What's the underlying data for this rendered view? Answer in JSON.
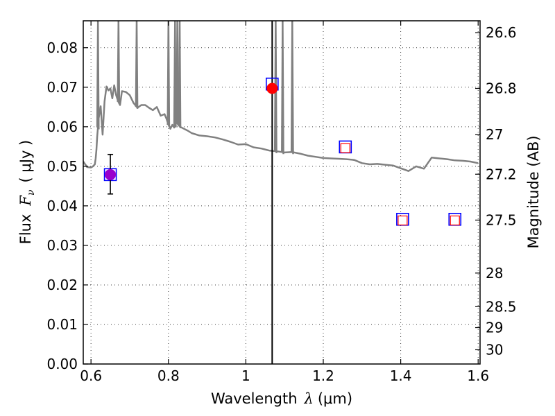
{
  "chart_data": {
    "type": "scatter",
    "xlabel_prefix": "Wavelength",
    "xlabel_symbol": "λ",
    "xlabel_unit": "(μm)",
    "ylabel_prefix": "Flux",
    "ylabel_symbol": "F",
    "ylabel_sub": "ν",
    "ylabel_unit": "( μJy )",
    "y2label": "Magnitude (AB)",
    "xlim": [
      0.58,
      1.605
    ],
    "ylim": [
      0.0,
      0.0868
    ],
    "xticks": [
      0.6,
      0.8,
      1.0,
      1.2,
      1.4,
      1.6
    ],
    "xtick_labels": [
      "0.6",
      "0.8",
      "1",
      "1.2",
      "1.4",
      "1.6"
    ],
    "yticks": [
      0.0,
      0.01,
      0.02,
      0.03,
      0.04,
      0.05,
      0.06,
      0.07,
      0.08
    ],
    "ytick_labels": [
      "0.00",
      "0.01",
      "0.02",
      "0.03",
      "0.04",
      "0.05",
      "0.06",
      "0.07",
      "0.08"
    ],
    "y2ticks": [
      {
        "label": "26.6",
        "flux": 0.0838
      },
      {
        "label": "26.8",
        "flux": 0.0697
      },
      {
        "label": "27",
        "flux": 0.058
      },
      {
        "label": "27.2",
        "flux": 0.048
      },
      {
        "label": "27.5",
        "flux": 0.0364
      },
      {
        "label": "28",
        "flux": 0.023
      },
      {
        "label": "28.5",
        "flux": 0.0145
      },
      {
        "label": "29",
        "flux": 0.0092
      },
      {
        "label": "30",
        "flux": 0.0036
      }
    ],
    "grid": true,
    "vertical_line_x": 1.068,
    "model_spectrum": {
      "color": "#808080",
      "x": [
        0.58,
        0.59,
        0.6,
        0.605,
        0.61,
        0.612,
        0.614,
        0.616,
        0.62,
        0.625,
        0.63,
        0.635,
        0.64,
        0.645,
        0.65,
        0.655,
        0.66,
        0.665,
        0.67,
        0.675,
        0.68,
        0.69,
        0.7,
        0.71,
        0.72,
        0.73,
        0.74,
        0.75,
        0.76,
        0.77,
        0.78,
        0.79,
        0.795,
        0.8,
        0.805,
        0.81,
        0.815,
        0.82,
        0.83,
        0.84,
        0.85,
        0.86,
        0.88,
        0.9,
        0.92,
        0.94,
        0.96,
        0.98,
        1.0,
        1.02,
        1.04,
        1.06,
        1.08,
        1.1,
        1.12,
        1.14,
        1.16,
        1.18,
        1.2,
        1.22,
        1.24,
        1.26,
        1.28,
        1.3,
        1.32,
        1.34,
        1.36,
        1.38,
        1.4,
        1.42,
        1.44,
        1.46,
        1.48,
        1.5,
        1.52,
        1.54,
        1.56,
        1.58,
        1.6
      ],
      "y": [
        0.0512,
        0.0498,
        0.0497,
        0.05,
        0.0505,
        0.052,
        0.0542,
        0.0575,
        0.0622,
        0.0652,
        0.058,
        0.0664,
        0.0702,
        0.0692,
        0.0697,
        0.0672,
        0.0705,
        0.068,
        0.0665,
        0.0655,
        0.069,
        0.0688,
        0.068,
        0.066,
        0.0648,
        0.0655,
        0.0655,
        0.0648,
        0.0642,
        0.065,
        0.0628,
        0.0632,
        0.062,
        0.0605,
        0.0595,
        0.0605,
        0.0598,
        0.0612,
        0.06,
        0.0595,
        0.059,
        0.0584,
        0.0578,
        0.0576,
        0.0573,
        0.0568,
        0.0562,
        0.0555,
        0.0556,
        0.0548,
        0.0545,
        0.054,
        0.0538,
        0.0535,
        0.0536,
        0.0532,
        0.0527,
        0.0524,
        0.0521,
        0.052,
        0.0519,
        0.0518,
        0.0516,
        0.0508,
        0.0505,
        0.0506,
        0.0504,
        0.0502,
        0.0495,
        0.0488,
        0.05,
        0.0494,
        0.0522,
        0.052,
        0.0518,
        0.0515,
        0.0514,
        0.0512,
        0.0508
      ],
      "spikes": [
        {
          "x": 0.618,
          "y": 0.0868
        },
        {
          "x": 0.671,
          "y": 0.0868
        },
        {
          "x": 0.718,
          "y": 0.0868
        },
        {
          "x": 0.8,
          "y": 0.0868
        },
        {
          "x": 0.817,
          "y": 0.0868
        },
        {
          "x": 0.823,
          "y": 0.0868
        },
        {
          "x": 0.829,
          "y": 0.0868
        },
        {
          "x": 1.077,
          "y": 0.0868
        },
        {
          "x": 1.095,
          "y": 0.0868
        },
        {
          "x": 1.12,
          "y": 0.0868
        }
      ]
    },
    "model_photometry": {
      "name": "",
      "edge_color": "#0000ff",
      "points": [
        {
          "x": 0.65,
          "y": 0.0479
        },
        {
          "x": 1.068,
          "y": 0.0708
        },
        {
          "x": 1.257,
          "y": 0.0549
        },
        {
          "x": 1.405,
          "y": 0.0366
        },
        {
          "x": 1.54,
          "y": 0.0366
        }
      ]
    },
    "upper_limits": {
      "name": "",
      "edge_color": "#ff0000",
      "points": [
        {
          "x": 1.257,
          "y": 0.0546
        },
        {
          "x": 1.405,
          "y": 0.0363
        },
        {
          "x": 1.54,
          "y": 0.0363
        }
      ]
    },
    "detections": [
      {
        "x": 0.65,
        "y": 0.0479,
        "yerr_low": 0.043,
        "yerr_high": 0.053,
        "color": "#9900cc"
      },
      {
        "x": 1.068,
        "y": 0.0697,
        "color": "#ff0000"
      }
    ]
  }
}
